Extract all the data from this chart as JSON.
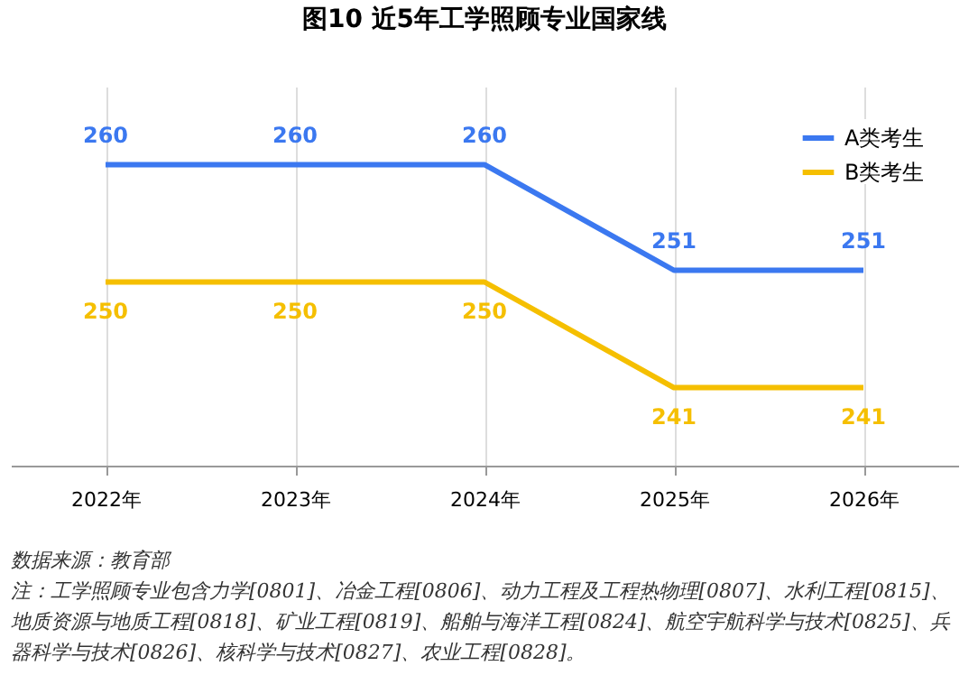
{
  "chart_data": {
    "type": "line",
    "title": "图10  近5年工学照顾专业国家线",
    "categories": [
      "2022年",
      "2023年",
      "2024年",
      "2025年",
      "2026年"
    ],
    "series": [
      {
        "name": "A类考生",
        "color": "#3b78f0",
        "values": [
          260,
          260,
          260,
          251,
          251
        ]
      },
      {
        "name": "B类考生",
        "color": "#f5bf00",
        "values": [
          250,
          250,
          250,
          241,
          241
        ]
      }
    ],
    "data_labels": true,
    "grid": "x",
    "legend": "top right",
    "marker": "none",
    "line_style": "solid",
    "annotations": [
      "数据来源：教育部",
      "注：工学照顾专业包含力学[0801]、冶金工程[0806]、动力工程及工程热物理[0807]、水利工程[0815]、地质资源与地质工程[0818]、矿业工程[0819]、船舶与海洋工程[0824]、航空宇航科学与技术[0825]、兵器科学与技术[0826]、核科学与技术[0827]、农业工程[0828]。"
    ]
  }
}
